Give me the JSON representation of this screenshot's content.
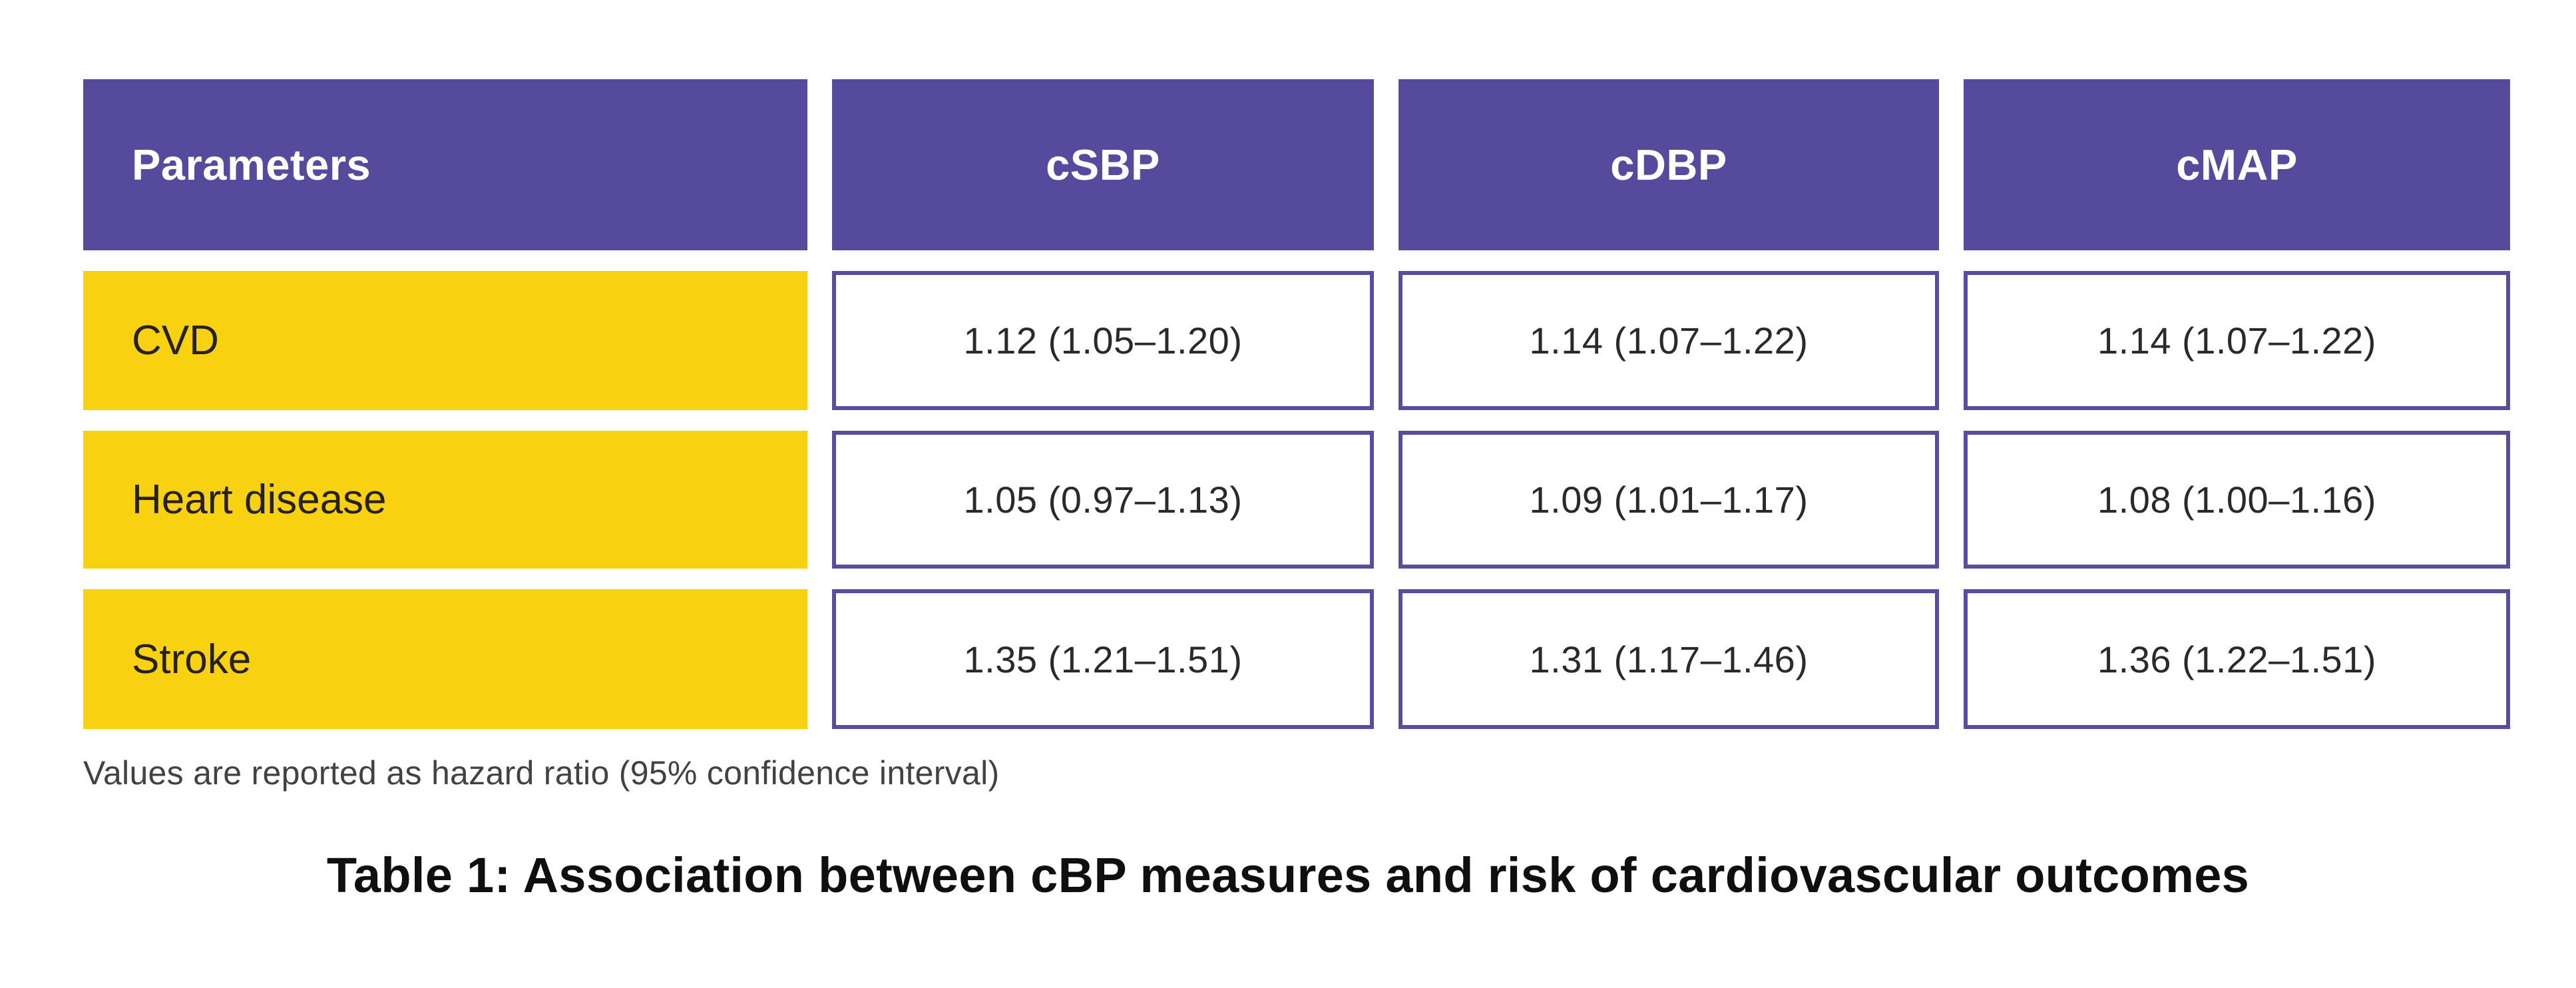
{
  "colors": {
    "page_bg": "#FFFFFF",
    "header_bg": "#564A9C",
    "header_text": "#FFFFFF",
    "row_label_bg": "#F8D211",
    "label_text": "#26211B",
    "cell_border": "#5A4C9F",
    "cell_text": "#2A2A2A",
    "footnote_text": "#424244",
    "caption_text": "#0F0F0F"
  },
  "table": {
    "columns": [
      "Parameters",
      "cSBP",
      "cDBP",
      "cMAP"
    ],
    "rows": [
      {
        "label": "CVD",
        "values": [
          "1.12 (1.05–1.20)",
          "1.14 (1.07–1.22)",
          "1.14 (1.07–1.22)"
        ]
      },
      {
        "label": "Heart disease",
        "values": [
          "1.05 (0.97–1.13)",
          "1.09 (1.01–1.17)",
          "1.08 (1.00–1.16)"
        ]
      },
      {
        "label": "Stroke",
        "values": [
          "1.35 (1.21–1.51)",
          "1.31 (1.17–1.46)",
          "1.36 (1.22–1.51)"
        ]
      }
    ],
    "footnote": "Values are reported as hazard ratio (95% confidence interval)",
    "caption": "Table 1: Association between cBP measures and risk of cardiovascular outcomes"
  },
  "chart_data": {
    "type": "table",
    "title": "Table 1: Association between cBP measures and risk of cardiovascular outcomes",
    "columns": [
      "Parameters",
      "cSBP",
      "cDBP",
      "cMAP"
    ],
    "rows": [
      [
        "CVD",
        "1.12 (1.05–1.20)",
        "1.14 (1.07–1.22)",
        "1.14 (1.07–1.22)"
      ],
      [
        "Heart disease",
        "1.05 (0.97–1.13)",
        "1.09 (1.01–1.17)",
        "1.08 (1.00–1.16)"
      ],
      [
        "Stroke",
        "1.35 (1.21–1.51)",
        "1.31 (1.17–1.46)",
        "1.36 (1.22–1.51)"
      ]
    ],
    "hazard_ratios": {
      "CVD": {
        "cSBP": 1.12,
        "cSBP_ci": [
          1.05,
          1.2
        ],
        "cDBP": 1.14,
        "cDBP_ci": [
          1.07,
          1.22
        ],
        "cMAP": 1.14,
        "cMAP_ci": [
          1.07,
          1.22
        ]
      },
      "Heart disease": {
        "cSBP": 1.05,
        "cSBP_ci": [
          0.97,
          1.13
        ],
        "cDBP": 1.09,
        "cDBP_ci": [
          1.01,
          1.17
        ],
        "cMAP": 1.08,
        "cMAP_ci": [
          1.0,
          1.16
        ]
      },
      "Stroke": {
        "cSBP": 1.35,
        "cSBP_ci": [
          1.21,
          1.51
        ],
        "cDBP": 1.31,
        "cDBP_ci": [
          1.17,
          1.46
        ],
        "cMAP": 1.36,
        "cMAP_ci": [
          1.22,
          1.51
        ]
      }
    },
    "footnote": "Values are reported as hazard ratio (95% confidence interval)"
  }
}
